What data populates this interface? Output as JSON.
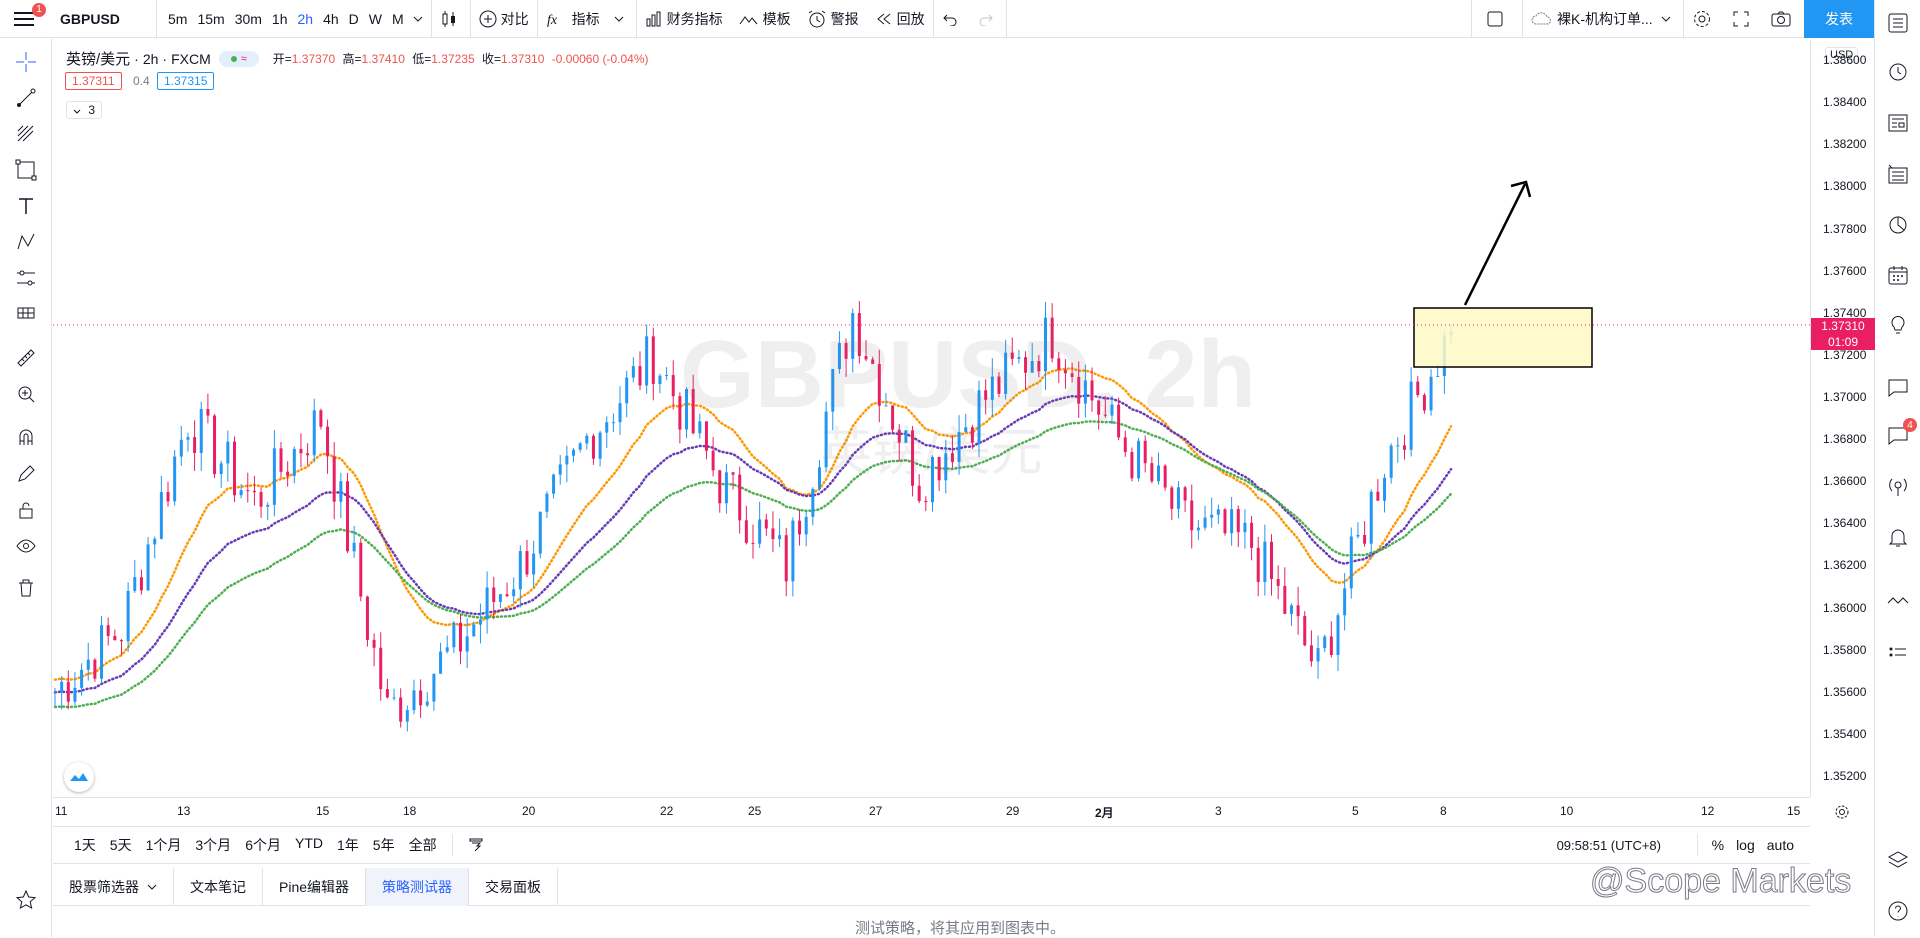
{
  "app": {
    "symbol": "GBPUSD",
    "notification_count": "1",
    "publish_label": "发表"
  },
  "toolbar": {
    "intervals": [
      "5m",
      "15m",
      "30m",
      "1h",
      "2h",
      "4h",
      "D",
      "W",
      "M"
    ],
    "active_interval": "2h",
    "compare_label": "对比",
    "indicators_label": "指标",
    "financials_label": "财务指标",
    "templates_label": "模板",
    "alert_label": "警报",
    "replay_label": "回放",
    "layout_name": "裸K-机构订单..."
  },
  "legend": {
    "name": "英镑/美元",
    "interval": "2h",
    "exchange": "FXCM",
    "open_label": "开=",
    "open": "1.37370",
    "high_label": "高=",
    "high": "1.37410",
    "low_label": "低=",
    "low": "1.37235",
    "close_label": "收=",
    "close": "1.37310",
    "change": "-0.00060 (-0.04%)",
    "bid": "1.37311",
    "spread": "0.4",
    "ask": "1.37315",
    "indicator_count": "3",
    "pill_glyph": "≈"
  },
  "watermark": {
    "symbol": "GBPUSD, 2h",
    "name": "英镑/美元"
  },
  "price_axis": {
    "currency": "USD",
    "ticks": [
      "1.38600",
      "1.38400",
      "1.38200",
      "1.38000",
      "1.37800",
      "1.37600",
      "1.37400",
      "1.37200",
      "1.37000",
      "1.36800",
      "1.36600",
      "1.36400",
      "1.36200",
      "1.36000",
      "1.35800",
      "1.35600",
      "1.35400",
      "1.35200"
    ],
    "last_price": "1.37310",
    "countdown": "01:09"
  },
  "time_axis": {
    "ticks": [
      "11",
      "13",
      "15",
      "18",
      "20",
      "22",
      "25",
      "27",
      "29",
      "2月",
      "3",
      "5",
      "8",
      "10",
      "12",
      "15"
    ]
  },
  "time_ranges": [
    "1天",
    "5天",
    "1个月",
    "3个月",
    "6个月",
    "YTD",
    "1年",
    "5年",
    "全部"
  ],
  "clock": "09:58:51 (UTC+8)",
  "scale_options": [
    "%",
    "log",
    "auto"
  ],
  "bottom_tabs": [
    "股票筛选器",
    "文本笔记",
    "Pine编辑器",
    "策略测试器",
    "交易面板"
  ],
  "active_bottom_tab": "策略测试器",
  "strategy_message": "测试策略，将其应用到图表中。",
  "brand_watermark": "@Scope Markets",
  "right_notification_count": "4",
  "colors": {
    "up": "#2196f3",
    "down": "#e91e63",
    "ema_fast": "#ff9800",
    "ema_mid": "#673ab7",
    "ema_slow": "#4caf50",
    "highlight_box": "#fff9c4",
    "accent": "#2962ff"
  },
  "chart_data": {
    "type": "candlestick",
    "y_range": [
      1.351,
      1.387
    ],
    "close_price": 1.3731,
    "key_points": [
      {
        "x": "11",
        "close": 1.356
      },
      {
        "x": "13",
        "close": 1.359
      },
      {
        "x": "14",
        "close": 1.369
      },
      {
        "x": "15",
        "close": 1.365
      },
      {
        "x": "16",
        "close": 1.369
      },
      {
        "x": "18",
        "close": 1.355
      },
      {
        "x": "19",
        "close": 1.358
      },
      {
        "x": "20",
        "close": 1.362
      },
      {
        "x": "21",
        "close": 1.368
      },
      {
        "x": "22",
        "close": 1.372
      },
      {
        "x": "25",
        "close": 1.366
      },
      {
        "x": "26",
        "close": 1.362
      },
      {
        "x": "27",
        "close": 1.374
      },
      {
        "x": "28",
        "close": 1.366
      },
      {
        "x": "29",
        "close": 1.37
      },
      {
        "x": "1",
        "close": 1.373
      },
      {
        "x": "2月",
        "close": 1.368
      },
      {
        "x": "3",
        "close": 1.364
      },
      {
        "x": "4",
        "close": 1.363
      },
      {
        "x": "5",
        "close": 1.357
      },
      {
        "x": "5b",
        "close": 1.367
      },
      {
        "x": "8",
        "close": 1.3731
      }
    ]
  }
}
